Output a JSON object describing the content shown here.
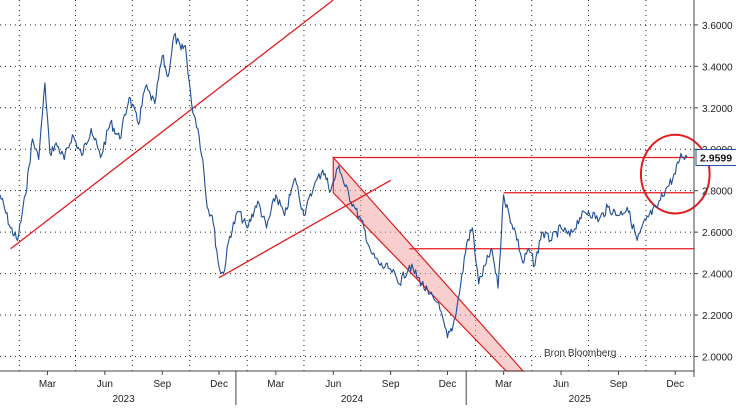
{
  "chart_data": {
    "type": "line",
    "x_ticks_month": [
      "Mar",
      "Jun",
      "Sep",
      "Dec",
      "Mar",
      "Jun",
      "Sep",
      "Dec",
      "Mar",
      "Jun",
      "Sep",
      "Dec"
    ],
    "x_ticks_year": [
      "2023",
      "2024",
      "2025"
    ],
    "y_ticks": [
      "2.0000",
      "2.2000",
      "2.4000",
      "2.6000",
      "2.8000",
      "3.0000",
      "3.2000",
      "3.4000",
      "3.6000"
    ],
    "ylim": [
      1.93,
      3.72
    ],
    "last_value_label": "2.9599",
    "source_label": "Bron Bloomberg",
    "grid": true,
    "series": [
      {
        "color": "#1f4e96",
        "points": [
          [
            "2022-12-15",
            2.78
          ],
          [
            "2023-01-01",
            2.62
          ],
          [
            "2023-01-12",
            2.56
          ],
          [
            "2023-01-25",
            2.78
          ],
          [
            "2023-02-05",
            3.05
          ],
          [
            "2023-02-15",
            2.95
          ],
          [
            "2023-02-25",
            3.32
          ],
          [
            "2023-03-05",
            2.98
          ],
          [
            "2023-03-15",
            3.03
          ],
          [
            "2023-03-28",
            2.95
          ],
          [
            "2023-04-10",
            3.07
          ],
          [
            "2023-04-25",
            2.97
          ],
          [
            "2023-05-10",
            3.1
          ],
          [
            "2023-05-25",
            2.96
          ],
          [
            "2023-06-10",
            3.13
          ],
          [
            "2023-06-25",
            3.05
          ],
          [
            "2023-07-10",
            3.25
          ],
          [
            "2023-07-25",
            3.12
          ],
          [
            "2023-08-05",
            3.3
          ],
          [
            "2023-08-20",
            3.22
          ],
          [
            "2023-09-01",
            3.45
          ],
          [
            "2023-09-10",
            3.35
          ],
          [
            "2023-09-20",
            3.55
          ],
          [
            "2023-10-01",
            3.48
          ],
          [
            "2023-10-08",
            3.5
          ],
          [
            "2023-10-18",
            3.22
          ],
          [
            "2023-10-28",
            3.1
          ],
          [
            "2023-11-05",
            2.95
          ],
          [
            "2023-11-12",
            2.72
          ],
          [
            "2023-11-20",
            2.68
          ],
          [
            "2023-12-01",
            2.43
          ],
          [
            "2023-12-08",
            2.4
          ],
          [
            "2023-12-18",
            2.58
          ],
          [
            "2024-01-01",
            2.7
          ],
          [
            "2024-01-15",
            2.62
          ],
          [
            "2024-02-01",
            2.75
          ],
          [
            "2024-02-15",
            2.62
          ],
          [
            "2024-03-01",
            2.78
          ],
          [
            "2024-03-15",
            2.68
          ],
          [
            "2024-04-01",
            2.86
          ],
          [
            "2024-04-15",
            2.68
          ],
          [
            "2024-05-01",
            2.82
          ],
          [
            "2024-05-15",
            2.9
          ],
          [
            "2024-05-28",
            2.8
          ],
          [
            "2024-06-10",
            2.92
          ],
          [
            "2024-06-20",
            2.82
          ],
          [
            "2024-07-05",
            2.72
          ],
          [
            "2024-07-20",
            2.62
          ],
          [
            "2024-08-01",
            2.5
          ],
          [
            "2024-08-15",
            2.44
          ],
          [
            "2024-09-01",
            2.42
          ],
          [
            "2024-09-15",
            2.35
          ],
          [
            "2024-10-01",
            2.44
          ],
          [
            "2024-10-15",
            2.38
          ],
          [
            "2024-11-01",
            2.3
          ],
          [
            "2024-11-15",
            2.26
          ],
          [
            "2024-12-01",
            2.09
          ],
          [
            "2024-12-10",
            2.15
          ],
          [
            "2024-12-20",
            2.3
          ],
          [
            "2025-01-01",
            2.55
          ],
          [
            "2025-01-10",
            2.62
          ],
          [
            "2025-01-20",
            2.35
          ],
          [
            "2025-02-01",
            2.45
          ],
          [
            "2025-02-10",
            2.52
          ],
          [
            "2025-02-20",
            2.33
          ],
          [
            "2025-03-01",
            2.78
          ],
          [
            "2025-03-10",
            2.68
          ],
          [
            "2025-03-20",
            2.6
          ],
          [
            "2025-04-01",
            2.45
          ],
          [
            "2025-04-10",
            2.52
          ],
          [
            "2025-04-20",
            2.44
          ],
          [
            "2025-05-01",
            2.6
          ],
          [
            "2025-05-15",
            2.56
          ],
          [
            "2025-06-01",
            2.62
          ],
          [
            "2025-06-15",
            2.58
          ],
          [
            "2025-07-01",
            2.67
          ],
          [
            "2025-07-15",
            2.7
          ],
          [
            "2025-08-01",
            2.66
          ],
          [
            "2025-08-15",
            2.72
          ],
          [
            "2025-09-01",
            2.68
          ],
          [
            "2025-09-15",
            2.72
          ],
          [
            "2025-10-01",
            2.56
          ],
          [
            "2025-10-15",
            2.66
          ],
          [
            "2025-11-01",
            2.72
          ],
          [
            "2025-11-15",
            2.8
          ],
          [
            "2025-12-01",
            2.88
          ],
          [
            "2025-12-10",
            2.98
          ],
          [
            "2025-12-20",
            2.96
          ]
        ]
      }
    ],
    "annotations": {
      "color": "#e41a1c",
      "lines": [
        {
          "from": [
            "2023-01-01",
            2.52
          ],
          "to": [
            "2024-06-01",
            3.72
          ]
        },
        {
          "from": [
            "2023-12-01",
            2.38
          ],
          "to": [
            "2024-09-01",
            2.85
          ]
        },
        {
          "from": [
            "2024-06-01",
            2.96
          ],
          "to": [
            "2025-12-31",
            2.96
          ]
        },
        {
          "from": [
            "2025-03-01",
            2.79
          ],
          "to": [
            "2025-12-31",
            2.79
          ]
        },
        {
          "from": [
            "2024-10-01",
            2.52
          ],
          "to": [
            "2025-12-31",
            2.52
          ]
        }
      ],
      "channel": [
        [
          "2024-06-01",
          2.96
        ],
        [
          "2025-04-01",
          1.93
        ],
        [
          "2025-03-05",
          1.93
        ],
        [
          "2024-06-01",
          2.79
        ]
      ],
      "circle": {
        "center": [
          "2025-12-01",
          2.88
        ],
        "rx_days": 55,
        "ry": 0.19
      }
    }
  }
}
